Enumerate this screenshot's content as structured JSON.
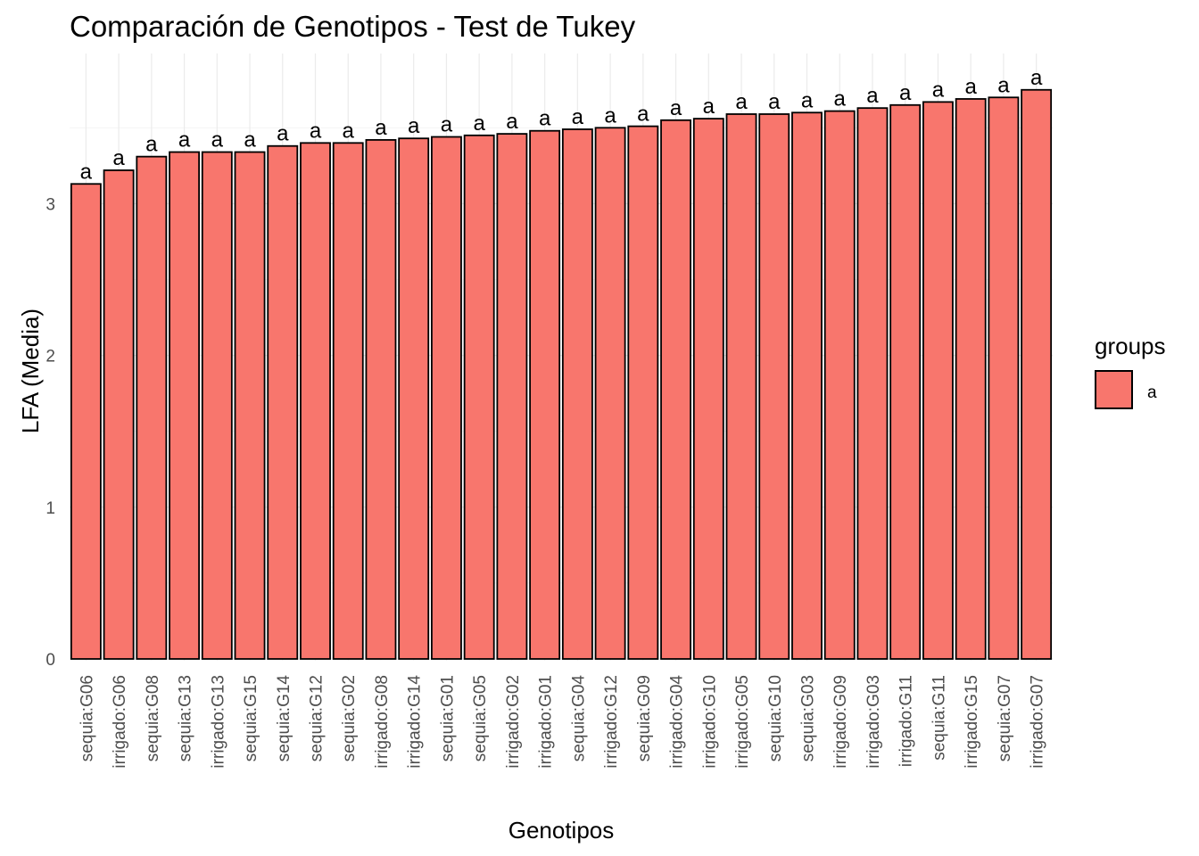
{
  "chart_data": {
    "type": "bar",
    "title": "Comparación de Genotipos - Test de Tukey",
    "xlabel": "Genotipos",
    "ylabel": "LFA (Media)",
    "ylim": [
      0,
      3.85
    ],
    "yticks": [
      0,
      1,
      2,
      3
    ],
    "grid": true,
    "bar_color": "#F8766D",
    "bar_outline": "#000000",
    "legend": {
      "title": "groups",
      "position": "right",
      "entries": [
        "a"
      ]
    },
    "categories": [
      "sequia:G06",
      "irrigado:G06",
      "sequia:G08",
      "sequia:G13",
      "irrigado:G13",
      "sequia:G15",
      "sequia:G14",
      "sequia:G12",
      "sequia:G02",
      "irrigado:G08",
      "irrigado:G14",
      "sequia:G01",
      "sequia:G05",
      "irrigado:G02",
      "irrigado:G01",
      "sequia:G04",
      "irrigado:G12",
      "sequia:G09",
      "irrigado:G04",
      "irrigado:G10",
      "irrigado:G05",
      "sequia:G10",
      "sequia:G03",
      "irrigado:G09",
      "irrigado:G03",
      "irrigado:G11",
      "sequia:G11",
      "irrigado:G15",
      "sequia:G07",
      "irrigado:G07"
    ],
    "values": [
      3.13,
      3.22,
      3.31,
      3.34,
      3.34,
      3.34,
      3.38,
      3.4,
      3.4,
      3.42,
      3.43,
      3.44,
      3.45,
      3.46,
      3.48,
      3.49,
      3.5,
      3.51,
      3.55,
      3.56,
      3.59,
      3.59,
      3.6,
      3.61,
      3.63,
      3.65,
      3.67,
      3.69,
      3.7,
      3.75
    ],
    "groups": [
      "a",
      "a",
      "a",
      "a",
      "a",
      "a",
      "a",
      "a",
      "a",
      "a",
      "a",
      "a",
      "a",
      "a",
      "a",
      "a",
      "a",
      "a",
      "a",
      "a",
      "a",
      "a",
      "a",
      "a",
      "a",
      "a",
      "a",
      "a",
      "a",
      "a"
    ]
  }
}
